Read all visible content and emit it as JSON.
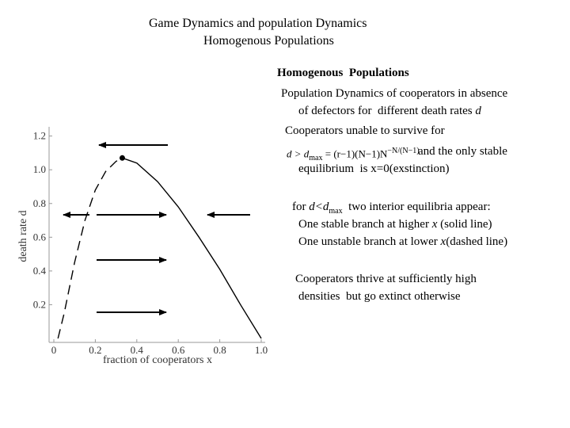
{
  "header": {
    "title": [
      "Game Dynamics and population Dynamics",
      "Homogenous Populations"
    ]
  },
  "body": {
    "heading": "Homogenous  Populations",
    "line1": "Population Dynamics of cooperators in absence",
    "line2": [
      "of defectors for  different death rates ",
      "d"
    ],
    "line3": "Cooperators unable to survive for",
    "formula": [
      "d > d",
      "max",
      " = (r−1)(N−1)N",
      "−N/(N−1)"
    ],
    "line4": "and the only stable",
    "line5": "equilibrium  is x=0(exstinction)",
    "line6": [
      "for ",
      "d",
      "<d",
      "max",
      "  two interior equilibria appear:"
    ],
    "line7": [
      "One stable branch at higher ",
      "x",
      " (solid line)"
    ],
    "line8": [
      "One unstable branch at lower ",
      "x",
      "(dashed line)"
    ],
    "line9": "Cooperators thrive at sufficiently high",
    "line10": "densities  but go extinct otherwise"
  },
  "chart_data": {
    "type": "line",
    "x_label": "fraction of cooperators x",
    "y_label": "death rate d",
    "series": [
      {
        "style": "dashed",
        "color": "#000000",
        "x": [
          0.02,
          0.05,
          0.1,
          0.15,
          0.2,
          0.25,
          0.3,
          0.33
        ],
        "values": [
          0,
          0.15,
          0.45,
          0.7,
          0.88,
          0.99,
          1.05,
          1.07
        ]
      },
      {
        "style": "solid",
        "color": "#000000",
        "x": [
          0.33,
          0.4,
          0.5,
          0.6,
          0.7,
          0.8,
          0.9,
          1.0
        ],
        "values": [
          1.07,
          1.04,
          0.93,
          0.78,
          0.6,
          0.41,
          0.2,
          0
        ]
      }
    ],
    "xlim": [
      0,
      1
    ],
    "xticks": [
      0,
      0.2,
      0.4,
      0.6,
      0.8,
      {
        "value": 1,
        "label": "1.0"
      }
    ],
    "ylim": [
      0,
      1.25
    ],
    "yticks": [
      0.2,
      0.4,
      0.6,
      0.8,
      {
        "value": 1,
        "label": "1.0"
      },
      1.2
    ]
  }
}
